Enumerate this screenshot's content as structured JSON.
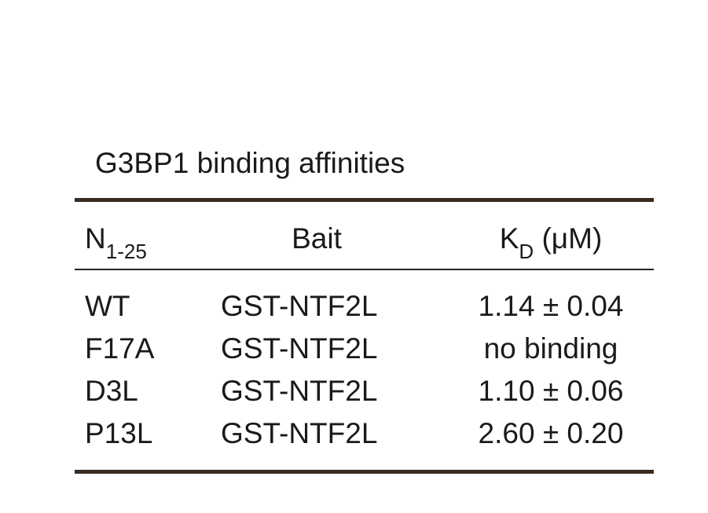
{
  "table": {
    "title": "G3BP1 binding affinities",
    "headers": {
      "col1_main": "N",
      "col1_sub": "1-25",
      "col2": "Bait",
      "col3_main": "K",
      "col3_sub": "D",
      "col3_unit": " (μM)"
    },
    "rows": [
      {
        "mutant": "WT",
        "bait": "GST-NTF2L",
        "kd": "1.14 ± 0.04"
      },
      {
        "mutant": "F17A",
        "bait": "GST-NTF2L",
        "kd": "no binding"
      },
      {
        "mutant": "D3L",
        "bait": "GST-NTF2L",
        "kd": "1.10 ± 0.06"
      },
      {
        "mutant": "P13L",
        "bait": "GST-NTF2L",
        "kd": "2.60 ± 0.20"
      }
    ]
  }
}
